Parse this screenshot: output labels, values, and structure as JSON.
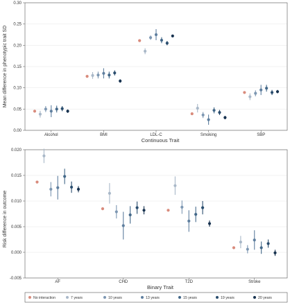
{
  "chart_data": [
    {
      "type": "scatter",
      "subtype": "point-with-error-bars",
      "xlabel": "Continuous Trait",
      "ylabel": "Mean difference in phenotypic trait SD",
      "ylim": [
        0,
        0.3
      ],
      "yticks": [
        "0.00",
        "0.05",
        "0.10",
        "0.15",
        "0.20",
        "0.25",
        "0.30"
      ],
      "grid": true,
      "categories": [
        "Alcohol",
        "BMI",
        "LDL-C",
        "Smoking",
        "SBP"
      ],
      "series": [
        {
          "name": "No interaction",
          "values": [
            0.045,
            0.127,
            0.211,
            0.039,
            0.089
          ],
          "ci_low": [
            0.045,
            0.127,
            0.211,
            0.039,
            0.089
          ],
          "ci_high": [
            0.045,
            0.127,
            0.211,
            0.039,
            0.089
          ]
        },
        {
          "name": "7 years",
          "values": [
            0.038,
            0.129,
            0.186,
            0.052,
            0.079
          ],
          "ci_low": [
            0.03,
            0.121,
            0.179,
            0.042,
            0.071
          ],
          "ci_high": [
            0.046,
            0.137,
            0.193,
            0.062,
            0.087
          ]
        },
        {
          "name": "10 years",
          "values": [
            0.05,
            0.13,
            0.218,
            0.036,
            0.087
          ],
          "ci_low": [
            0.043,
            0.122,
            0.213,
            0.029,
            0.08
          ],
          "ci_high": [
            0.057,
            0.138,
            0.223,
            0.043,
            0.094
          ]
        },
        {
          "name": "13 years",
          "values": [
            0.045,
            0.134,
            0.225,
            0.025,
            0.095
          ],
          "ci_low": [
            0.031,
            0.122,
            0.212,
            0.013,
            0.083
          ],
          "ci_high": [
            0.059,
            0.146,
            0.238,
            0.037,
            0.107
          ]
        },
        {
          "name": "15 years",
          "values": [
            0.05,
            0.13,
            0.212,
            0.047,
            0.099
          ],
          "ci_low": [
            0.042,
            0.122,
            0.205,
            0.04,
            0.091
          ],
          "ci_high": [
            0.058,
            0.138,
            0.219,
            0.054,
            0.107
          ]
        },
        {
          "name": "19 years",
          "values": [
            0.051,
            0.135,
            0.205,
            0.042,
            0.089
          ],
          "ci_low": [
            0.045,
            0.129,
            0.2,
            0.036,
            0.083
          ],
          "ci_high": [
            0.057,
            0.141,
            0.21,
            0.048,
            0.095
          ]
        },
        {
          "name": "20 years",
          "values": [
            0.045,
            0.116,
            0.222,
            0.03,
            0.091
          ],
          "ci_low": [
            0.041,
            0.112,
            0.219,
            0.026,
            0.087
          ],
          "ci_high": [
            0.049,
            0.12,
            0.225,
            0.034,
            0.095
          ]
        }
      ]
    },
    {
      "type": "scatter",
      "subtype": "point-with-error-bars",
      "xlabel": "Binary Trait",
      "ylabel": "Risk difference in outcome",
      "ylim": [
        -0.005,
        0.02
      ],
      "yticks": [
        "-0.005",
        "0.000",
        "0.005",
        "0.010",
        "0.015",
        "0.020"
      ],
      "grid": true,
      "categories": [
        "AF",
        "CHD",
        "T2D",
        "Stroke"
      ],
      "series": [
        {
          "name": "No interaction",
          "values": [
            0.0137,
            0.0085,
            0.0082,
            0.0009
          ],
          "ci_low": [
            0.0137,
            0.0085,
            0.0082,
            0.0009
          ],
          "ci_high": [
            0.0137,
            0.0085,
            0.0082,
            0.0009
          ]
        },
        {
          "name": "7 years",
          "values": [
            0.0188,
            0.0115,
            0.013,
            0.002
          ],
          "ci_low": [
            0.0174,
            0.0095,
            0.0112,
            0.0008
          ],
          "ci_high": [
            0.0202,
            0.0135,
            0.0148,
            0.0032
          ]
        },
        {
          "name": "10 years",
          "values": [
            0.0123,
            0.0079,
            0.0088,
            0.0006
          ],
          "ci_low": [
            0.0109,
            0.0066,
            0.0075,
            -0.0002
          ],
          "ci_high": [
            0.0137,
            0.0092,
            0.0101,
            0.0014
          ]
        },
        {
          "name": "13 years",
          "values": [
            0.0126,
            0.0052,
            0.0061,
            0.0024
          ],
          "ci_low": [
            0.0103,
            0.0025,
            0.004,
            0.0005
          ],
          "ci_high": [
            0.0149,
            0.0079,
            0.0082,
            0.0043
          ]
        },
        {
          "name": "15 years",
          "values": [
            0.0148,
            0.0073,
            0.0074,
            0.0009
          ],
          "ci_low": [
            0.0133,
            0.0056,
            0.0059,
            -0.0003
          ],
          "ci_high": [
            0.0163,
            0.009,
            0.0089,
            0.0021
          ]
        },
        {
          "name": "19 years",
          "values": [
            0.0127,
            0.0087,
            0.0087,
            0.0017
          ],
          "ci_low": [
            0.0116,
            0.0075,
            0.0074,
            0.0009
          ],
          "ci_high": [
            0.0138,
            0.0099,
            0.01,
            0.0025
          ]
        },
        {
          "name": "20 years",
          "values": [
            0.0123,
            0.0082,
            0.0056,
            -0.0001
          ],
          "ci_low": [
            0.0117,
            0.0074,
            0.005,
            -0.0007
          ],
          "ci_high": [
            0.0129,
            0.009,
            0.0062,
            0.0005
          ]
        }
      ]
    }
  ],
  "legend": {
    "placement": "bottom",
    "items": [
      {
        "label": "No interaction",
        "color": "#d98b7c"
      },
      {
        "label": "7 years",
        "color": "#a9b8c8"
      },
      {
        "label": "10 years",
        "color": "#7d97b2"
      },
      {
        "label": "13 years",
        "color": "#5f7f9f"
      },
      {
        "label": "15 years",
        "color": "#436889"
      },
      {
        "label": "19 years",
        "color": "#2a4d6e"
      },
      {
        "label": "20 years",
        "color": "#17324f"
      }
    ]
  }
}
